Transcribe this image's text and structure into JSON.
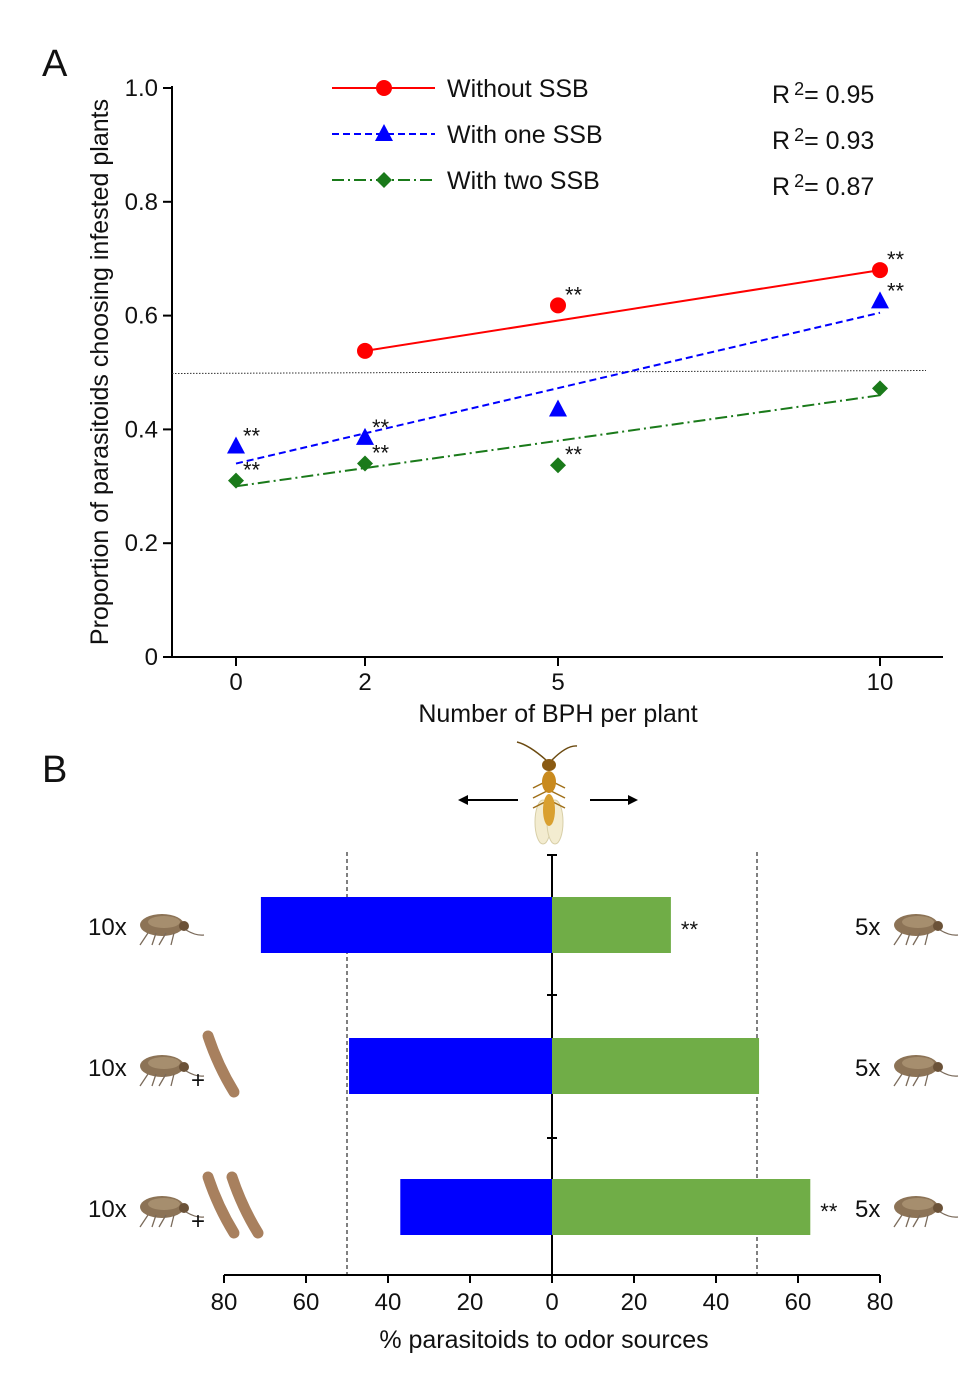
{
  "chart_data": [
    {
      "panel": "A",
      "type": "scatter",
      "xlabel": "Number of BPH per plant",
      "ylabel": "Proportion of parasitoids choosing infested plants",
      "x_ticks": [
        "0",
        "2",
        "5",
        "10"
      ],
      "y_ticks": [
        "0",
        "0.2",
        "0.4",
        "0.6",
        "0.8",
        "1.0"
      ],
      "ylim": [
        0,
        1.0
      ],
      "reference_y": 0.5,
      "legend_position": "top",
      "series": [
        {
          "name": "Without SSB",
          "color": "#ff0000",
          "marker": "circle",
          "line": "solid",
          "x": [
            2,
            5,
            10
          ],
          "y": [
            0.538,
            0.618,
            0.68
          ],
          "fit": [
            [
              2,
              0.538
            ],
            [
              10,
              0.68
            ]
          ],
          "r2": "R²= 0.95",
          "sig": [
            "",
            "**",
            "**"
          ]
        },
        {
          "name": "With one SSB",
          "color": "#0000ff",
          "marker": "triangle",
          "line": "dashed",
          "x": [
            0,
            2,
            5,
            10
          ],
          "y": [
            0.37,
            0.385,
            0.435,
            0.625
          ],
          "fit": [
            [
              0,
              0.34
            ],
            [
              10,
              0.605
            ]
          ],
          "r2": "R²= 0.93",
          "sig": [
            "**",
            "**",
            "",
            "**"
          ]
        },
        {
          "name": "With two SSB",
          "color": "#1a7a1a",
          "marker": "diamond",
          "line": "dashdot",
          "x": [
            0,
            2,
            5,
            10
          ],
          "y": [
            0.31,
            0.34,
            0.337,
            0.472
          ],
          "fit": [
            [
              0,
              0.3
            ],
            [
              10,
              0.46
            ]
          ],
          "r2": "R²= 0.87",
          "sig": [
            "**",
            "**",
            "**",
            ""
          ]
        }
      ]
    },
    {
      "panel": "B",
      "type": "bar",
      "orientation": "horizontal-diverging",
      "xlabel": "% parasitoids to odor sources",
      "x_ticks": [
        "80",
        "60",
        "40",
        "20",
        "0",
        "20",
        "40",
        "60",
        "80"
      ],
      "xlim": [
        -80,
        80
      ],
      "reference_x": [
        -50,
        50
      ],
      "colors": {
        "left": "#0000ff",
        "right": "#70ad47"
      },
      "rows": [
        {
          "left_label": "10x",
          "left_ssb": 0,
          "right_label": "5x",
          "left": 71,
          "right": 29,
          "sig": "**",
          "sig_side": "right"
        },
        {
          "left_label": "10x",
          "left_ssb": 1,
          "right_label": "5x",
          "left": 49.5,
          "right": 50.5,
          "sig": "",
          "sig_side": "right"
        },
        {
          "left_label": "10x",
          "left_ssb": 2,
          "right_label": "5x",
          "left": 37,
          "right": 63,
          "sig": "**",
          "sig_side": "right"
        }
      ]
    }
  ],
  "panel_labels": {
    "a": "A",
    "b": "B"
  },
  "plus": "+",
  "icons": {
    "insect": "planthopper-icon",
    "stem": "stem-borer-icon",
    "wasp": "parasitoid-wasp-icon"
  }
}
